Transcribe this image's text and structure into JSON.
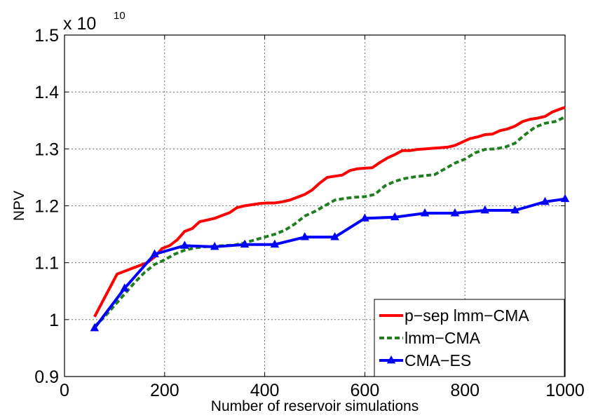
{
  "chart_data": {
    "type": "line",
    "xlabel": "Number of reservoir simulations",
    "ylabel": "NPV",
    "xlim": [
      0,
      1000
    ],
    "ylim": [
      0.9,
      1.5
    ],
    "x_ticks": [
      "0",
      "200",
      "400",
      "600",
      "800",
      "1000"
    ],
    "y_ticks": [
      "0.9",
      "1",
      "1.1",
      "1.2",
      "1.3",
      "1.4",
      "1.5"
    ],
    "y_multiplier": {
      "base": "x 10",
      "exponent": "10"
    },
    "grid": true,
    "legend_position": "bottom-right",
    "series": [
      {
        "name": "p−sep lmm−CMA",
        "color": "#ff0000",
        "style": "solid",
        "marker": "none",
        "x": [
          60,
          75,
          90,
          105,
          120,
          135,
          150,
          165,
          180,
          195,
          210,
          225,
          240,
          255,
          270,
          285,
          300,
          315,
          330,
          345,
          360,
          375,
          390,
          405,
          420,
          435,
          450,
          465,
          480,
          495,
          510,
          525,
          540,
          555,
          570,
          585,
          600,
          615,
          630,
          645,
          660,
          675,
          690,
          705,
          720,
          735,
          750,
          765,
          780,
          795,
          810,
          825,
          840,
          855,
          870,
          885,
          900,
          915,
          930,
          945,
          960,
          975,
          990,
          1000
        ],
        "values": [
          1.005,
          1.03,
          1.055,
          1.08,
          1.085,
          1.09,
          1.095,
          1.1,
          1.11,
          1.125,
          1.13,
          1.14,
          1.155,
          1.16,
          1.172,
          1.175,
          1.178,
          1.183,
          1.188,
          1.197,
          1.2,
          1.202,
          1.204,
          1.205,
          1.205,
          1.207,
          1.21,
          1.215,
          1.22,
          1.228,
          1.24,
          1.25,
          1.252,
          1.254,
          1.262,
          1.265,
          1.266,
          1.267,
          1.276,
          1.284,
          1.29,
          1.297,
          1.297,
          1.299,
          1.3,
          1.301,
          1.302,
          1.303,
          1.306,
          1.312,
          1.318,
          1.321,
          1.325,
          1.326,
          1.332,
          1.335,
          1.34,
          1.348,
          1.352,
          1.354,
          1.357,
          1.365,
          1.37,
          1.373
        ]
      },
      {
        "name": "lmm−CMA",
        "color": "#1f7f1f",
        "style": "dashed",
        "marker": "none",
        "x": [
          60,
          80,
          100,
          120,
          140,
          160,
          180,
          200,
          220,
          240,
          260,
          280,
          300,
          320,
          340,
          360,
          380,
          400,
          420,
          440,
          460,
          480,
          500,
          520,
          540,
          560,
          580,
          600,
          620,
          640,
          660,
          680,
          700,
          720,
          740,
          760,
          780,
          800,
          820,
          840,
          860,
          880,
          900,
          920,
          940,
          960,
          980,
          1000
        ],
        "values": [
          0.988,
          1.005,
          1.025,
          1.045,
          1.065,
          1.083,
          1.097,
          1.105,
          1.115,
          1.122,
          1.126,
          1.128,
          1.129,
          1.13,
          1.131,
          1.135,
          1.14,
          1.145,
          1.15,
          1.157,
          1.168,
          1.182,
          1.19,
          1.2,
          1.21,
          1.213,
          1.215,
          1.216,
          1.22,
          1.235,
          1.243,
          1.248,
          1.251,
          1.253,
          1.255,
          1.265,
          1.275,
          1.282,
          1.293,
          1.299,
          1.3,
          1.303,
          1.31,
          1.325,
          1.338,
          1.345,
          1.348,
          1.356
        ]
      },
      {
        "name": "CMA−ES",
        "color": "#0000ff",
        "style": "solid",
        "marker": "triangle",
        "x": [
          60,
          120,
          180,
          240,
          300,
          360,
          420,
          480,
          540,
          600,
          660,
          720,
          780,
          840,
          900,
          960,
          1000
        ],
        "values": [
          0.985,
          1.055,
          1.115,
          1.13,
          1.128,
          1.132,
          1.132,
          1.145,
          1.145,
          1.178,
          1.18,
          1.187,
          1.187,
          1.192,
          1.192,
          1.207,
          1.212
        ]
      }
    ]
  }
}
